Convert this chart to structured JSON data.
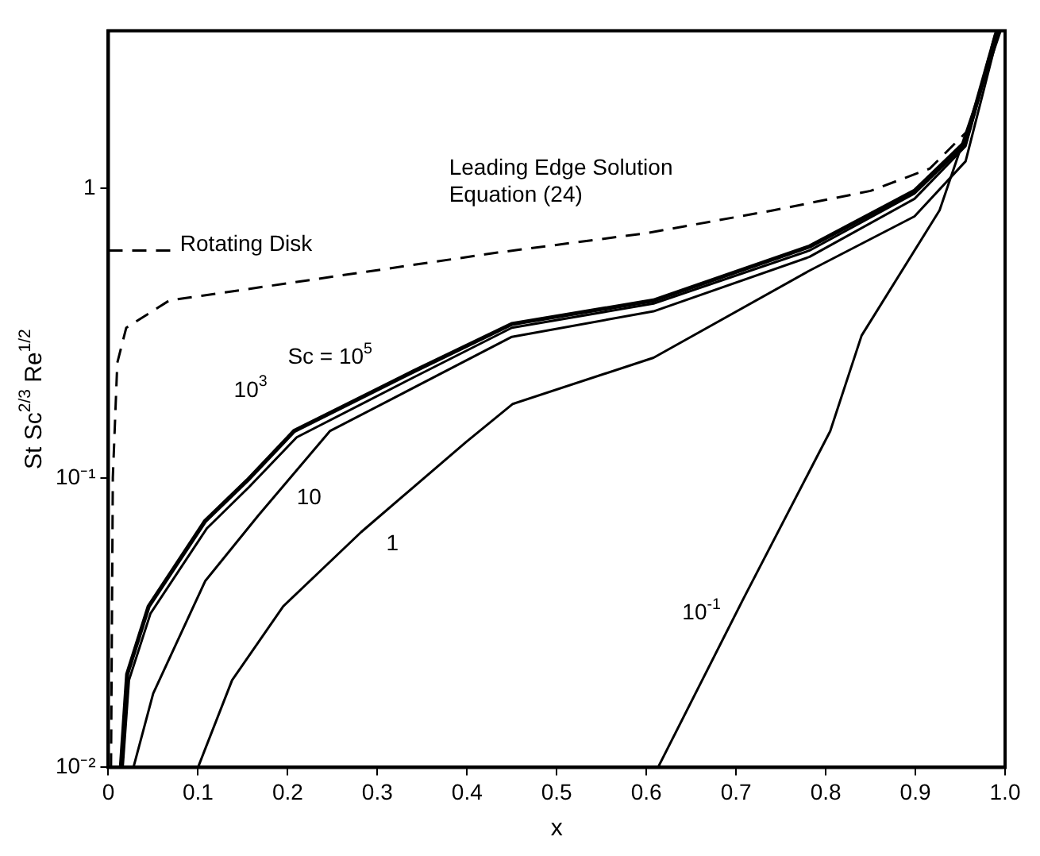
{
  "chart_data": {
    "type": "line",
    "xlabel": "x",
    "ylabel": "St Sc$^{2/3}$ Re$^{1/2}$",
    "log": "y",
    "grid": false,
    "marker": "none",
    "xlim": [
      0,
      1
    ],
    "xticks": [
      0,
      0.1,
      0.2,
      0.3,
      0.4,
      0.5,
      0.6,
      0.7,
      0.8,
      0.9,
      {
        "value": 1,
        "label": "1.0"
      }
    ],
    "ylim": [
      0.01,
      3.5
    ],
    "yticks": [
      {
        "value": 0.01,
        "label": "10⁻²"
      },
      {
        "value": 0.1,
        "label": "10⁻¹"
      },
      1
    ],
    "series": [
      {
        "name": "Leading Edge Solution Equation (24)",
        "color": "#000000",
        "line_style": "dashed",
        "x": [
          0.003,
          0.005,
          0.01,
          0.02,
          0.068,
          0.2,
          0.434,
          0.6,
          0.742,
          0.85,
          0.916,
          0.96,
          0.99
        ],
        "values": [
          0.01,
          0.1,
          0.25,
          0.33,
          0.41,
          0.47,
          0.6,
          0.7,
          0.84,
          0.98,
          1.17,
          1.6,
          3.5
        ]
      },
      {
        "name": "Rotating Disk",
        "color": "#000000",
        "line_style": "dashed",
        "x": [
          0,
          0.07
        ],
        "values": [
          0.61,
          0.61
        ]
      },
      {
        "name": "Sc = 10$^{5}$",
        "color": "#000000",
        "line_style": "solid",
        "x": [
          0.014,
          0.021,
          0.045,
          0.108,
          0.155,
          0.207,
          0.34,
          0.45,
          0.608,
          0.782,
          0.899,
          0.956,
          0.991
        ],
        "values": [
          0.01,
          0.021,
          0.036,
          0.071,
          0.098,
          0.145,
          0.233,
          0.34,
          0.41,
          0.63,
          0.98,
          1.45,
          3.5
        ]
      },
      {
        "name": "10$^{3}$",
        "color": "#000000",
        "line_style": "solid",
        "x": [
          0.016,
          0.023,
          0.047,
          0.11,
          0.157,
          0.21,
          0.34,
          0.45,
          0.608,
          0.782,
          0.899,
          0.956,
          0.991
        ],
        "values": [
          0.01,
          0.02,
          0.034,
          0.067,
          0.093,
          0.138,
          0.222,
          0.33,
          0.4,
          0.61,
          0.96,
          1.42,
          3.5
        ]
      },
      {
        "name": "10",
        "color": "#000000",
        "line_style": "solid",
        "x": [
          0.028,
          0.05,
          0.108,
          0.167,
          0.247,
          0.45,
          0.608,
          0.782,
          0.899,
          0.956,
          0.992
        ],
        "values": [
          0.01,
          0.018,
          0.044,
          0.074,
          0.145,
          0.307,
          0.376,
          0.58,
          0.92,
          1.4,
          3.5
        ]
      },
      {
        "name": "1",
        "color": "#000000",
        "line_style": "solid",
        "x": [
          0.1,
          0.138,
          0.195,
          0.282,
          0.399,
          0.451,
          0.608,
          0.782,
          0.899,
          0.956,
          0.993
        ],
        "values": [
          0.01,
          0.02,
          0.036,
          0.065,
          0.133,
          0.18,
          0.26,
          0.52,
          0.8,
          1.24,
          3.5
        ]
      },
      {
        "name": "10$^{-1}$",
        "color": "#000000",
        "line_style": "solid",
        "x": [
          0.613,
          0.707,
          0.805,
          0.84,
          0.927,
          0.995
        ],
        "values": [
          0.01,
          0.0376,
          0.145,
          0.31,
          0.84,
          3.5
        ]
      }
    ]
  }
}
